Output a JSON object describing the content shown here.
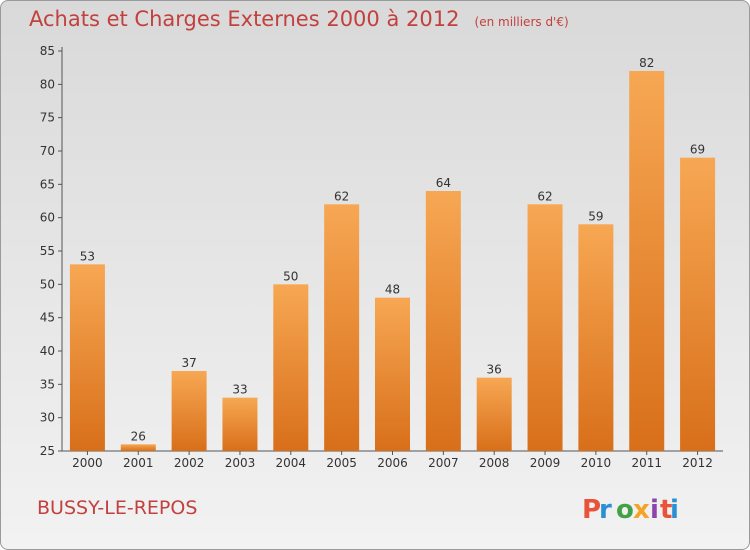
{
  "title": "Achats et Charges Externes 2000 à 2012",
  "unit_note": "(en milliers d'€)",
  "commune": "BUSSY-LE-REPOS",
  "logo": {
    "text": "Proxiti",
    "colors": [
      "#e8533a",
      "#2b8fd6",
      "#43a047",
      "#f4a326",
      "#8e44ad"
    ]
  },
  "colors": {
    "bar_top": "#f7a753",
    "bar_bottom": "#d86f1a",
    "title": "#c2413e"
  },
  "chart_data": {
    "type": "bar",
    "categories": [
      "2000",
      "2001",
      "2002",
      "2003",
      "2004",
      "2005",
      "2006",
      "2007",
      "2008",
      "2009",
      "2010",
      "2011",
      "2012"
    ],
    "values": [
      53,
      26,
      37,
      33,
      50,
      62,
      48,
      64,
      36,
      62,
      59,
      82,
      69
    ],
    "title": "Achats et Charges Externes 2000 à 2012",
    "xlabel": "",
    "ylabel": "",
    "ylim": [
      25,
      85
    ],
    "yticks": [
      25,
      30,
      35,
      40,
      45,
      50,
      55,
      60,
      65,
      70,
      75,
      80,
      85
    ],
    "grid": false
  }
}
